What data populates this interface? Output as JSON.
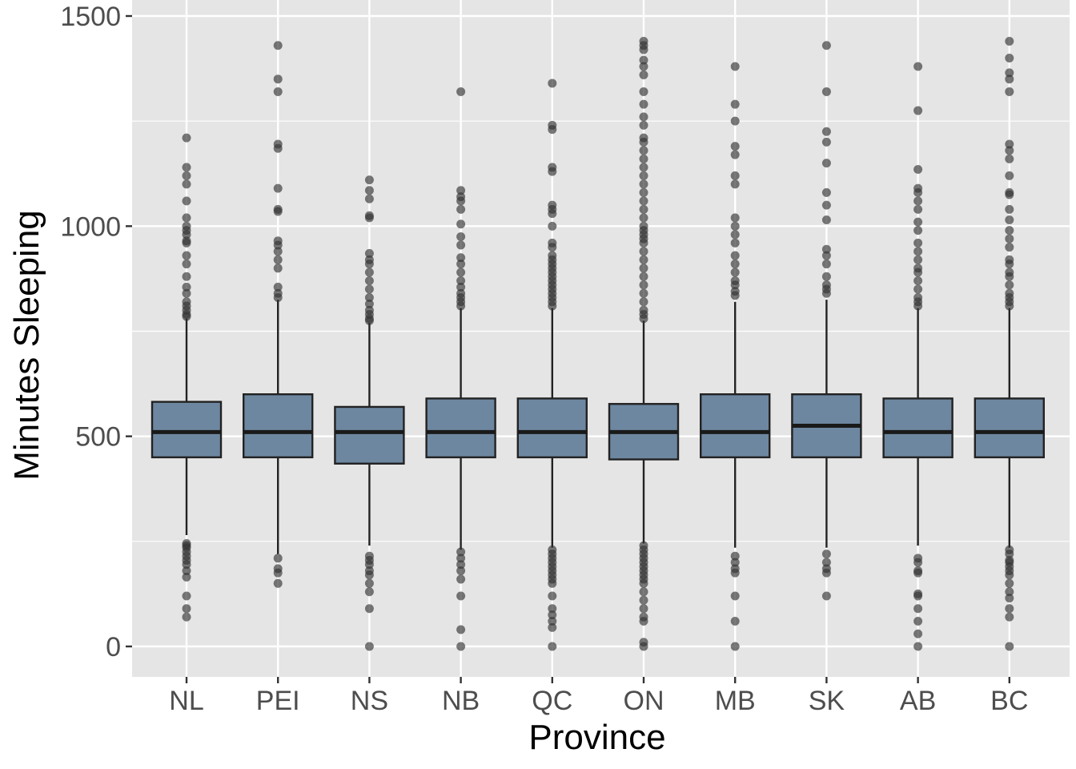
{
  "chart_data": {
    "type": "boxplot",
    "title": "",
    "xlabel": "Province",
    "ylabel": "Minutes Sleeping",
    "ylim": [
      -70,
      1500
    ],
    "yticks": [
      0,
      500,
      1000,
      1500
    ],
    "ytick_labels": [
      "0",
      "500",
      "1000",
      "1500"
    ],
    "minor_grid": [
      250,
      750,
      1250
    ],
    "grid": true,
    "legend": "none",
    "colors": {
      "panel": "#e5e5e5",
      "grid": "#ffffff",
      "box_fill": "#6d87a0",
      "box_stroke": "#222222",
      "outlier": "#333333",
      "tick_text": "#4d4d4d"
    },
    "categories": [
      "NL",
      "PEI",
      "NS",
      "NB",
      "QC",
      "ON",
      "MB",
      "SK",
      "AB",
      "BC"
    ],
    "boxes": [
      {
        "category": "NL",
        "lower_whisker": 265,
        "q1": 450,
        "median": 510,
        "q3": 582,
        "upper_whisker": 780,
        "outliers": [
          1210,
          1140,
          1120,
          1100,
          1060,
          1020,
          1000,
          990,
          980,
          965,
          960,
          930,
          910,
          880,
          855,
          840,
          820,
          810,
          800,
          790,
          785,
          245,
          240,
          235,
          225,
          215,
          205,
          195,
          180,
          165,
          120,
          90,
          70
        ]
      },
      {
        "category": "PEI",
        "lower_whisker": 220,
        "q1": 450,
        "median": 510,
        "q3": 600,
        "upper_whisker": 825,
        "outliers": [
          1430,
          1350,
          1320,
          1195,
          1185,
          1090,
          1040,
          1035,
          965,
          955,
          940,
          920,
          900,
          855,
          840,
          830,
          210,
          185,
          175,
          150
        ]
      },
      {
        "category": "NS",
        "lower_whisker": 240,
        "q1": 435,
        "median": 510,
        "q3": 570,
        "upper_whisker": 770,
        "outliers": [
          1110,
          1085,
          1065,
          1025,
          1020,
          935,
          920,
          910,
          890,
          870,
          850,
          830,
          815,
          800,
          790,
          780,
          775,
          215,
          205,
          195,
          180,
          170,
          150,
          130,
          90,
          0
        ]
      },
      {
        "category": "NB",
        "lower_whisker": 230,
        "q1": 450,
        "median": 510,
        "q3": 590,
        "upper_whisker": 805,
        "outliers": [
          1320,
          1085,
          1070,
          1060,
          1040,
          1005,
          975,
          955,
          925,
          910,
          890,
          870,
          855,
          840,
          830,
          820,
          810,
          225,
          210,
          195,
          180,
          160,
          120,
          40,
          0
        ]
      },
      {
        "category": "QC",
        "lower_whisker": 235,
        "q1": 450,
        "median": 510,
        "q3": 590,
        "upper_whisker": 805,
        "outliers": [
          1340,
          1240,
          1230,
          1140,
          1130,
          1050,
          1040,
          1030,
          1000,
          960,
          950,
          930,
          920,
          910,
          900,
          890,
          880,
          870,
          860,
          850,
          840,
          830,
          820,
          810,
          230,
          220,
          210,
          200,
          190,
          180,
          170,
          160,
          150,
          120,
          90,
          75,
          60,
          45,
          0
        ]
      },
      {
        "category": "ON",
        "lower_whisker": 245,
        "q1": 445,
        "median": 510,
        "q3": 577,
        "upper_whisker": 775,
        "outliers": [
          1440,
          1430,
          1420,
          1395,
          1380,
          1360,
          1320,
          1290,
          1260,
          1240,
          1210,
          1200,
          1180,
          1160,
          1140,
          1120,
          1100,
          1080,
          1060,
          1040,
          1020,
          1000,
          990,
          980,
          970,
          960,
          940,
          920,
          900,
          880,
          860,
          840,
          820,
          800,
          790,
          780,
          240,
          230,
          220,
          210,
          200,
          190,
          180,
          170,
          160,
          150,
          130,
          110,
          90,
          70,
          60,
          10,
          0
        ]
      },
      {
        "category": "MB",
        "lower_whisker": 235,
        "q1": 450,
        "median": 510,
        "q3": 600,
        "upper_whisker": 820,
        "outliers": [
          1380,
          1290,
          1250,
          1190,
          1170,
          1120,
          1100,
          1020,
          1000,
          980,
          960,
          930,
          910,
          890,
          870,
          860,
          845,
          835,
          215,
          200,
          185,
          175,
          120,
          60,
          0
        ]
      },
      {
        "category": "SK",
        "lower_whisker": 235,
        "q1": 450,
        "median": 525,
        "q3": 600,
        "upper_whisker": 825,
        "outliers": [
          1430,
          1320,
          1225,
          1200,
          1150,
          1080,
          1050,
          1015,
          945,
          930,
          910,
          880,
          860,
          850,
          840,
          220,
          200,
          185,
          175,
          120
        ]
      },
      {
        "category": "AB",
        "lower_whisker": 240,
        "q1": 450,
        "median": 510,
        "q3": 590,
        "upper_whisker": 805,
        "outliers": [
          1380,
          1275,
          1135,
          1090,
          1080,
          1060,
          1040,
          1010,
          990,
          960,
          940,
          920,
          900,
          890,
          870,
          850,
          830,
          820,
          810,
          210,
          200,
          180,
          175,
          125,
          120,
          90,
          60,
          30,
          0
        ]
      },
      {
        "category": "BC",
        "lower_whisker": 235,
        "q1": 450,
        "median": 510,
        "q3": 590,
        "upper_whisker": 805,
        "outliers": [
          1440,
          1400,
          1365,
          1350,
          1320,
          1195,
          1180,
          1160,
          1120,
          1080,
          1075,
          1040,
          1015,
          990,
          970,
          950,
          920,
          910,
          890,
          880,
          860,
          840,
          830,
          820,
          810,
          230,
          220,
          205,
          200,
          190,
          180,
          170,
          150,
          130,
          115,
          90,
          70,
          0
        ]
      }
    ]
  }
}
